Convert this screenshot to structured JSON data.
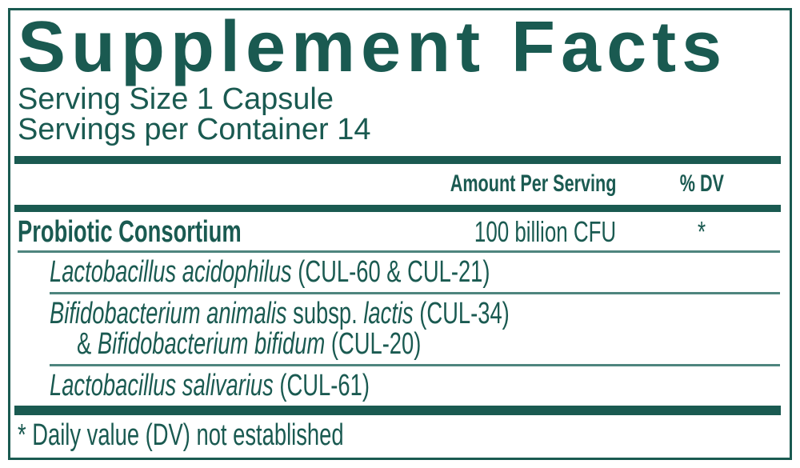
{
  "title": "Supplement Facts",
  "serving": {
    "size": "Serving Size 1 Capsule",
    "per_container": "Servings per Container 14"
  },
  "table": {
    "header": {
      "amount": "Amount Per Serving",
      "dv": "% DV"
    },
    "main_row": {
      "name": "Probiotic Consortium",
      "amount": "100 billion CFU",
      "dv": "*"
    }
  },
  "ingredients": {
    "acidophilus": {
      "species": "Lactobacillus acidophilus",
      "strain": "(CUL-60 & CUL-21)"
    },
    "bifidobacterium": {
      "species_1": "Bifidobacterium animalis",
      "subsp_label": "subsp.",
      "subspecies": "lactis",
      "strain_1": "(CUL-34)",
      "ampersand": "&",
      "species_2": "Bifidobacterium bifidum",
      "strain_2": "(CUL-20)"
    },
    "salivarius": {
      "species": "Lactobacillus salivarius",
      "strain": "(CUL-61)"
    }
  },
  "footnote": "* Daily value (DV) not established",
  "colors": {
    "teal": "#1a5a51",
    "divider": "#4e857e",
    "background": "#ffffff"
  }
}
